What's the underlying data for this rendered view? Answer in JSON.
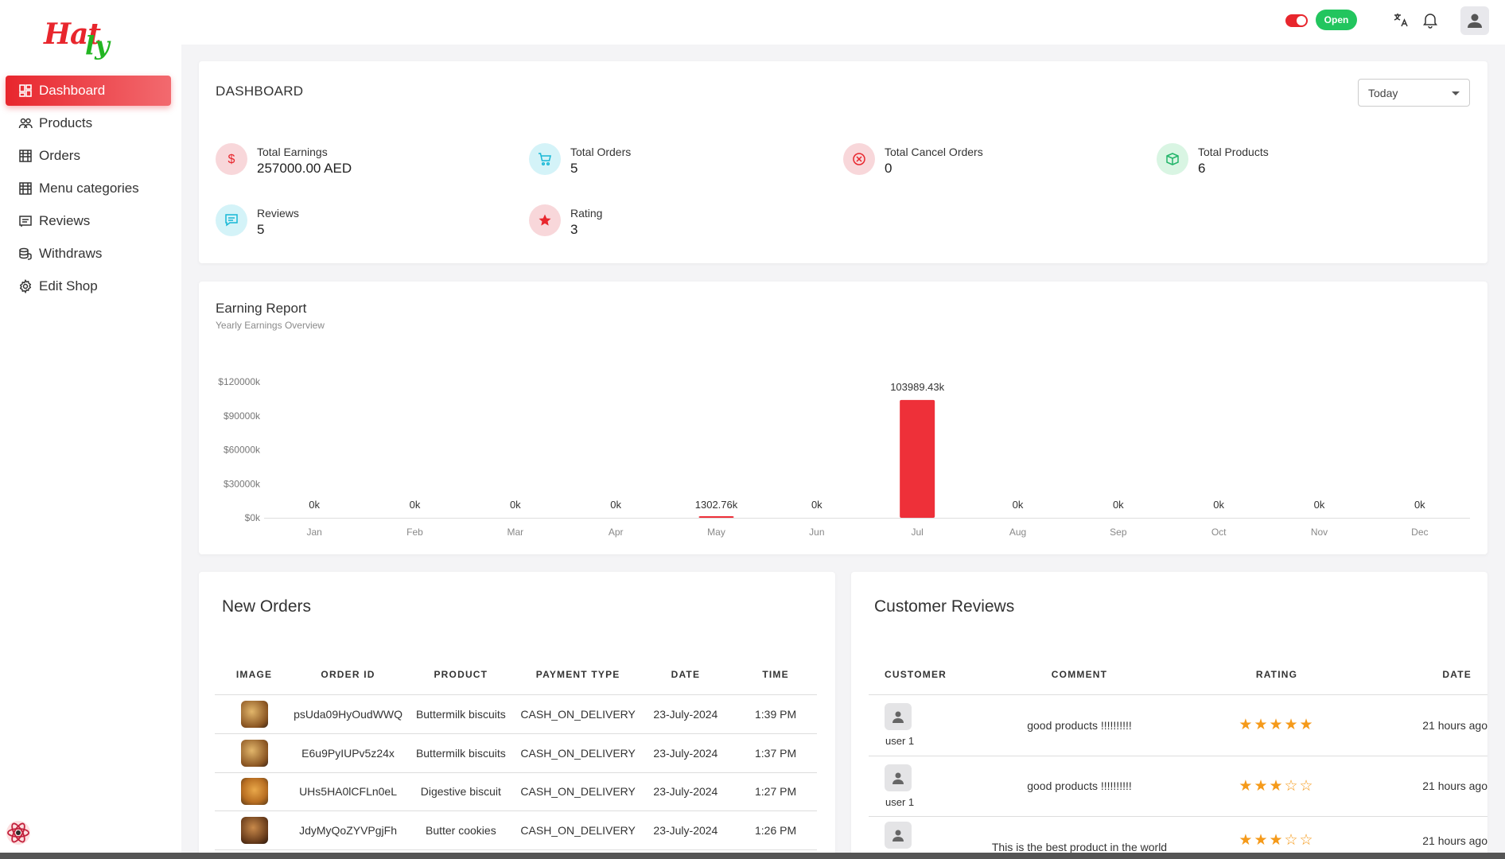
{
  "brand": {
    "logo_part1": "Hat",
    "logo_part2": "ly"
  },
  "sidebar": {
    "items": [
      {
        "label": "Dashboard",
        "icon": "dashboard-icon",
        "active": true
      },
      {
        "label": "Products",
        "icon": "users-icon"
      },
      {
        "label": "Orders",
        "icon": "store-icon"
      },
      {
        "label": "Menu categories",
        "icon": "store-icon"
      },
      {
        "label": "Reviews",
        "icon": "list-icon"
      },
      {
        "label": "Withdraws",
        "icon": "coins-icon"
      },
      {
        "label": "Edit Shop",
        "icon": "gear-icon"
      }
    ]
  },
  "topbar": {
    "shop_status": "Open",
    "toggle_on": true
  },
  "dashboard": {
    "title": "DASHBOARD",
    "period": "Today",
    "stats": [
      {
        "label": "Total Earnings",
        "value": "257000.00 AED",
        "icon": "dollar-icon",
        "color": "#f8d7da",
        "icon_color": "#e8262d"
      },
      {
        "label": "Total Orders",
        "value": "5",
        "icon": "cart-icon",
        "color": "#d4f3f8",
        "icon_color": "#17b8d6"
      },
      {
        "label": "Total Cancel Orders",
        "value": "0",
        "icon": "cancel-icon",
        "color": "#f8d7da",
        "icon_color": "#e8262d"
      },
      {
        "label": "Total Products",
        "value": "6",
        "icon": "box-icon",
        "color": "#d9f5e3",
        "icon_color": "#22b56a"
      },
      {
        "label": "Reviews",
        "value": "5",
        "icon": "chat-icon",
        "color": "#d4f3f8",
        "icon_color": "#17b8d6"
      },
      {
        "label": "Rating",
        "value": "3",
        "icon": "star-icon",
        "color": "#f8d7da",
        "icon_color": "#e8262d"
      }
    ]
  },
  "earning_report": {
    "title": "Earning Report",
    "subtitle": "Yearly Earnings Overview"
  },
  "chart_data": {
    "type": "bar",
    "categories": [
      "Jan",
      "Feb",
      "Mar",
      "Apr",
      "May",
      "Jun",
      "Jul",
      "Aug",
      "Sep",
      "Oct",
      "Nov",
      "Dec"
    ],
    "values": [
      0,
      0,
      0,
      0,
      1302.76,
      0,
      103989.43,
      0,
      0,
      0,
      0,
      0
    ],
    "data_labels": [
      "0k",
      "0k",
      "0k",
      "0k",
      "1302.76k",
      "0k",
      "103989.43k",
      "0k",
      "0k",
      "0k",
      "0k",
      "0k"
    ],
    "y_ticks": [
      0,
      30000,
      60000,
      90000,
      120000
    ],
    "y_tick_labels": [
      "$0k",
      "$30000k",
      "$60000k",
      "$90000k",
      "$120000k"
    ],
    "ylim": [
      0,
      120000
    ],
    "color": "#ee3039",
    "grid": false
  },
  "new_orders": {
    "title": "New Orders",
    "columns": [
      "IMAGE",
      "ORDER ID",
      "PRODUCT",
      "PAYMENT TYPE",
      "DATE",
      "TIME"
    ],
    "rows": [
      {
        "id": "psUda09HyOudWWQ",
        "product": "Buttermilk biscuits",
        "payment": "CASH_ON_DELIVERY",
        "date": "23-July-2024",
        "time": "1:39 PM",
        "thumb": "#a06a2a"
      },
      {
        "id": "E6u9PyIUPv5z24x",
        "product": "Buttermilk biscuits",
        "payment": "CASH_ON_DELIVERY",
        "date": "23-July-2024",
        "time": "1:37 PM",
        "thumb": "#a06a2a"
      },
      {
        "id": "UHs5HA0lCFLn0eL",
        "product": "Digestive biscuit",
        "payment": "CASH_ON_DELIVERY",
        "date": "23-July-2024",
        "time": "1:27 PM",
        "thumb": "#c27d2a"
      },
      {
        "id": "JdyMyQoZYVPgjFh",
        "product": "Butter cookies",
        "payment": "CASH_ON_DELIVERY",
        "date": "23-July-2024",
        "time": "1:26 PM",
        "thumb": "#7a4a22"
      }
    ]
  },
  "customer_reviews": {
    "title": "Customer Reviews",
    "columns": [
      "CUSTOMER",
      "COMMENT",
      "RATING",
      "DATE"
    ],
    "rows": [
      {
        "customer": "user 1",
        "comment": "good products !!!!!!!!!!",
        "rating": 5,
        "stars": "★★★★★",
        "date": "21 hours ago"
      },
      {
        "customer": "user 1",
        "comment": "good products !!!!!!!!!!",
        "rating": 3,
        "stars": "★★★☆☆",
        "date": "21 hours ago"
      },
      {
        "customer": "",
        "comment": "This is the best product in the world",
        "rating": 3,
        "stars": "★★★☆☆",
        "date": "21 hours ago"
      }
    ]
  }
}
